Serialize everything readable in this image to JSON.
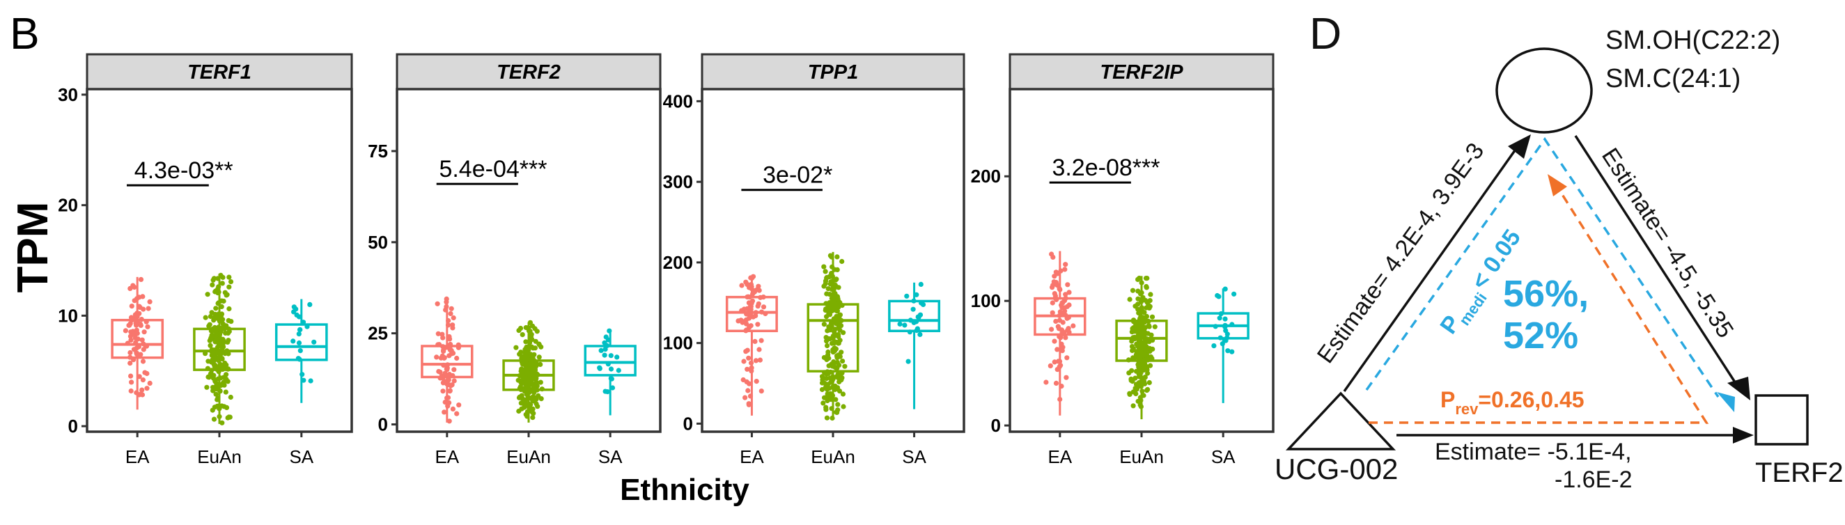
{
  "panel_b_letter": "B",
  "panel_d_letter": "D",
  "colors": {
    "EA": "#F8766D",
    "EuAn": "#7CAE00",
    "SA": "#00BFC4"
  },
  "chart_data": {
    "type": "box",
    "ylabel": "TPM",
    "xlabel": "Ethnicity",
    "categories": [
      "EA",
      "EuAn",
      "SA"
    ],
    "panels": [
      {
        "gene": "TERF1",
        "ylim": [
          -0.5,
          30.5
        ],
        "yticks": [
          0,
          10,
          20,
          30
        ],
        "pvalue": "4.3e-03**",
        "pvalue_y": 21.8,
        "boxes": [
          {
            "group": "EA",
            "min": 1.5,
            "q1": 6.2,
            "median": 7.4,
            "q3": 9.6,
            "max": 13.5,
            "n": 80
          },
          {
            "group": "EuAn",
            "min": 0.2,
            "q1": 5.1,
            "median": 6.8,
            "q3": 8.8,
            "max": 13.8,
            "n": 220
          },
          {
            "group": "SA",
            "min": 2.1,
            "q1": 6.0,
            "median": 7.2,
            "q3": 9.2,
            "max": 11.5,
            "n": 20
          }
        ]
      },
      {
        "gene": "TERF2",
        "ylim": [
          -2,
          92
        ],
        "yticks": [
          0,
          25,
          50,
          75
        ],
        "pvalue": "5.4e-04***",
        "pvalue_y": 66,
        "boxes": [
          {
            "group": "EA",
            "min": 0.5,
            "q1": 13,
            "median": 16.5,
            "q3": 21.5,
            "max": 35,
            "n": 80
          },
          {
            "group": "EuAn",
            "min": 0.5,
            "q1": 9.5,
            "median": 13.5,
            "q3": 17.5,
            "max": 28,
            "n": 220
          },
          {
            "group": "SA",
            "min": 2.5,
            "q1": 13.5,
            "median": 17,
            "q3": 21.5,
            "max": 26,
            "n": 20
          }
        ]
      },
      {
        "gene": "TPP1",
        "ylim": [
          -10,
          415
        ],
        "yticks": [
          0,
          100,
          200,
          300,
          400
        ],
        "pvalue": "3e-02*",
        "pvalue_y": 290,
        "boxes": [
          {
            "group": "EA",
            "min": 10,
            "q1": 115,
            "median": 138,
            "q3": 157,
            "max": 183,
            "n": 80
          },
          {
            "group": "EuAn",
            "min": 5,
            "q1": 65,
            "median": 128,
            "q3": 148,
            "max": 213,
            "n": 220
          },
          {
            "group": "SA",
            "min": 18,
            "q1": 115,
            "median": 128,
            "q3": 152,
            "max": 175,
            "n": 20
          }
        ]
      },
      {
        "gene": "TERF2IP",
        "ylim": [
          -5,
          270
        ],
        "yticks": [
          0,
          100,
          200
        ],
        "pvalue": "3.2e-08***",
        "pvalue_y": 195,
        "boxes": [
          {
            "group": "EA",
            "min": 8,
            "q1": 73,
            "median": 88,
            "q3": 102,
            "max": 140,
            "n": 80
          },
          {
            "group": "EuAn",
            "min": 5,
            "q1": 52,
            "median": 70,
            "q3": 84,
            "max": 120,
            "n": 220
          },
          {
            "group": "SA",
            "min": 18,
            "q1": 70,
            "median": 80,
            "q3": 90,
            "max": 110,
            "n": 20
          }
        ]
      }
    ]
  },
  "diagram": {
    "metabolite_lines": [
      "SM.OH(C22:2)",
      "SM.C(24:1)"
    ],
    "exposure": "UCG-002",
    "outcome": "TERF2",
    "edge_left": "Estimate= 4.2E-4, 3.9E-3",
    "edge_right": "Estimate= -4.5, -5.35",
    "edge_bottom_line1": "Estimate= -5.1E-4,",
    "edge_bottom_line2": "-1.6E-2",
    "p_medi_sym": "P",
    "p_medi_sub": "medi",
    "p_medi_val": "< 0.05",
    "p_rev_sym": "P",
    "p_rev_sub": "rev",
    "p_rev_val": "=0.26,0.45",
    "prop_line1": "56%,",
    "prop_line2": "52%",
    "blue": "#29A8E0",
    "orange": "#F07128"
  }
}
